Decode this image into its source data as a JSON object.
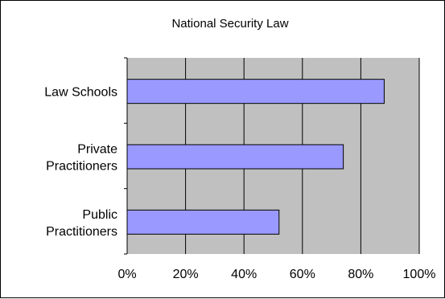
{
  "colors": {
    "plot_background": "#c0c0c0",
    "bar_fill": "#9999ff",
    "bar_stroke": "#000000",
    "gridline": "#000000"
  },
  "chart_data": {
    "type": "bar",
    "orientation": "horizontal",
    "title": "National Security Law",
    "xlabel": "",
    "ylabel": "",
    "categories": [
      [
        "Law Schools"
      ],
      [
        "Private",
        "Practitioners"
      ],
      [
        "Public",
        "Practitioners"
      ]
    ],
    "values": [
      0.88,
      0.74,
      0.52
    ],
    "xlim": [
      0,
      1
    ],
    "x_ticks": [
      0,
      0.2,
      0.4,
      0.6,
      0.8,
      1.0
    ],
    "x_tick_labels": [
      "0%",
      "20%",
      "40%",
      "60%",
      "80%",
      "100%"
    ],
    "grid": "vertical",
    "legend": "none"
  }
}
